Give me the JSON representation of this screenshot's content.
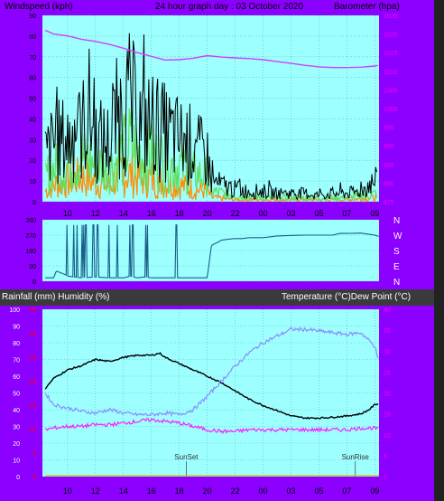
{
  "colors": {
    "frame": "#8B00FF",
    "plot_bg": "#9EFFFF",
    "divider": "#3A3A3A",
    "grid": "#4FB8B8",
    "axis_text": "#222222",
    "left_text": "#000000",
    "right_text": "#FF00FF",
    "rain_text": "#FF0000"
  },
  "chart_data": [
    {
      "type": "line",
      "title": "24 hour graph day : 03 October 2020",
      "ylabel_left": "Windspeed (kph)",
      "ylabel_right": "Barometer (hpa)",
      "x_ticks": [
        "10",
        "12",
        "14",
        "16",
        "18",
        "20",
        "22",
        "00",
        "03",
        "05",
        "07",
        "09"
      ],
      "x_hours": [
        10,
        12,
        14,
        16,
        18,
        20,
        22,
        24,
        26,
        28,
        30,
        32
      ],
      "xlim": [
        8.2,
        32.3
      ],
      "ylim_left": [
        0,
        90
      ],
      "y_ticks_left": [
        0,
        10,
        20,
        30,
        40,
        50,
        60,
        70,
        80,
        90
      ],
      "ylim_right": [
        975,
        1025
      ],
      "y_ticks_right": [
        975,
        980,
        985,
        990,
        995,
        1000,
        1005,
        1010,
        1015,
        1020,
        1025
      ],
      "series": [
        {
          "role": "gust",
          "color": "#000000",
          "axis": "left",
          "x": [
            8.4,
            9,
            10,
            11,
            11.5,
            12,
            13,
            13.5,
            14,
            14.5,
            15,
            15.5,
            16,
            17,
            18,
            19,
            19.5,
            20,
            20.3,
            21,
            22,
            23,
            24,
            25,
            26,
            27,
            28,
            29,
            30,
            31,
            31.5,
            32.2
          ],
          "values": [
            22,
            28,
            30,
            33,
            45,
            30,
            28,
            40,
            44,
            48,
            40,
            36,
            38,
            33,
            30,
            27,
            24,
            22,
            10,
            8,
            6,
            5,
            5,
            4,
            4,
            4,
            3,
            4,
            4,
            5,
            8,
            10
          ]
        },
        {
          "role": "average",
          "color": "#5FE05F",
          "axis": "left",
          "x": [
            8.4,
            9,
            10,
            11,
            12,
            13,
            14,
            14.5,
            15,
            16,
            17,
            18,
            19,
            20,
            20.3,
            22,
            24,
            26,
            28,
            30,
            32.2
          ],
          "values": [
            12,
            16,
            18,
            21,
            18,
            16,
            24,
            28,
            23,
            22,
            19,
            17,
            14,
            12,
            5,
            3,
            2,
            2,
            2,
            2,
            4
          ]
        },
        {
          "role": "direction-avg",
          "color": "#FF8C00",
          "axis": "left",
          "x": [
            8.4,
            9,
            10,
            11,
            12,
            13,
            14,
            15,
            16,
            17,
            18,
            19,
            20,
            20.3,
            22,
            24,
            26,
            28,
            30,
            32.2
          ],
          "values": [
            5,
            8,
            10,
            12,
            9,
            8,
            14,
            12,
            11,
            9,
            8,
            6,
            5,
            2,
            1,
            1,
            1,
            1,
            1,
            2
          ]
        },
        {
          "role": "barometer",
          "color": "#D040FF",
          "axis": "right",
          "x": [
            8.4,
            9,
            10,
            11,
            12,
            13,
            14,
            15,
            16,
            17,
            18,
            19,
            20,
            21,
            22,
            23,
            24,
            25,
            26,
            27,
            28,
            29,
            30,
            31,
            32,
            32.2
          ],
          "values": [
            1021,
            1020,
            1019.5,
            1018.6,
            1018,
            1017.2,
            1016.2,
            1015,
            1014,
            1013,
            1013.1,
            1013.5,
            1014.2,
            1013.8,
            1013.6,
            1013.4,
            1013.1,
            1012.6,
            1012.1,
            1011.6,
            1011.2,
            1011,
            1011,
            1011.1,
            1011.4,
            1011.6
          ]
        }
      ]
    },
    {
      "type": "line",
      "y_labels": [
        "N",
        "W",
        "S",
        "E",
        "N"
      ],
      "ylim": [
        0,
        360
      ],
      "y_ticks_left": [
        0,
        90,
        180,
        270,
        360
      ],
      "xlim": [
        8.2,
        32.3
      ],
      "series": [
        {
          "role": "wind-direction",
          "color": "#1B5E8A",
          "x": [
            8.4,
            9,
            9.2,
            9.8,
            10,
            11,
            12,
            13,
            14,
            14.5,
            15,
            15.5,
            16,
            17,
            18,
            19,
            20,
            20.3,
            20.8,
            21,
            21.4,
            22,
            22.5,
            23,
            24,
            25,
            26,
            27,
            28,
            29,
            29.5,
            30,
            31,
            32,
            32.3
          ],
          "values": [
            20,
            20,
            60,
            40,
            30,
            20,
            25,
            20,
            20,
            30,
            20,
            25,
            20,
            20,
            20,
            20,
            20,
            210,
            230,
            240,
            245,
            250,
            250,
            255,
            255,
            265,
            268,
            270,
            270,
            270,
            280,
            280,
            282,
            270,
            262
          ]
        }
      ]
    },
    {
      "type": "line",
      "ylabel_left": "Rainfall (mm)  Humidity (%)",
      "ylabel_right": "Temperature (°C)Dew Point (°C)",
      "x_ticks": [
        "10",
        "12",
        "14",
        "16",
        "18",
        "20",
        "22",
        "00",
        "03",
        "05",
        "07",
        "09"
      ],
      "x_hours": [
        10,
        12,
        14,
        16,
        18,
        20,
        22,
        24,
        26,
        28,
        30,
        32
      ],
      "xlim": [
        8.2,
        32.3
      ],
      "ylim_left": [
        0,
        100
      ],
      "y_ticks_left": [
        0,
        10,
        20,
        30,
        40,
        50,
        60,
        70,
        80,
        90,
        100
      ],
      "rain_ticks": [
        "0",
        "5",
        "10",
        "15",
        "20",
        "25",
        "30",
        "35"
      ],
      "ylim_right": [
        0,
        40
      ],
      "y_ticks_right": [
        0,
        5,
        10,
        15,
        20,
        25,
        30,
        35,
        40
      ],
      "annotations": [
        {
          "label": "SunSet",
          "hour": 18.5
        },
        {
          "label": "SunRise",
          "hour": 30.6
        }
      ],
      "series": [
        {
          "role": "temperature",
          "color": "#000000",
          "axis": "right",
          "x": [
            8.4,
            9,
            10,
            11,
            12,
            13,
            14,
            15,
            16,
            16.6,
            17,
            18,
            19,
            20,
            21,
            22,
            23,
            24,
            25,
            26,
            27,
            28,
            29,
            30,
            31,
            31.5,
            32,
            32.3
          ],
          "values": [
            21,
            23.5,
            25.5,
            26.5,
            28,
            27.5,
            28.5,
            29,
            29,
            29.5,
            28.5,
            27,
            25.5,
            24,
            22.5,
            20.5,
            18.5,
            17,
            15.8,
            14.5,
            14,
            14,
            14.2,
            14.5,
            15,
            15.8,
            17.2,
            17.5
          ]
        },
        {
          "role": "dew-point-humidity",
          "color": "#8B8BFF",
          "axis": "left",
          "x": [
            8.4,
            9,
            10,
            11,
            12,
            13,
            14,
            15,
            16,
            17,
            18,
            19,
            20,
            21,
            22,
            23,
            24,
            25,
            26,
            27,
            28,
            29,
            30,
            31,
            32,
            32.3
          ],
          "values": [
            50,
            43,
            41,
            39,
            38,
            40,
            38,
            37,
            37,
            38,
            37,
            40,
            48,
            57,
            66,
            74,
            80,
            84,
            88,
            88,
            87,
            86,
            85,
            86,
            78,
            68
          ]
        },
        {
          "role": "dew-point",
          "color": "#FF1EFF",
          "axis": "left",
          "x": [
            8.4,
            9,
            10,
            11,
            12,
            13,
            14,
            15,
            16,
            17,
            18,
            19,
            20,
            21,
            22,
            23,
            24,
            25,
            26,
            27,
            28,
            29,
            30,
            31,
            32,
            32.3
          ],
          "values": [
            28,
            29,
            30,
            30,
            31,
            31,
            32,
            33,
            34,
            33,
            32,
            30,
            28,
            27,
            27,
            28,
            28,
            28,
            28,
            28,
            28,
            28,
            28,
            29,
            29,
            28
          ]
        },
        {
          "role": "rainfall",
          "color": "#D8C000",
          "axis": "left",
          "x": [
            8.4,
            32.3
          ],
          "values": [
            0.3,
            0.3
          ]
        }
      ]
    }
  ]
}
